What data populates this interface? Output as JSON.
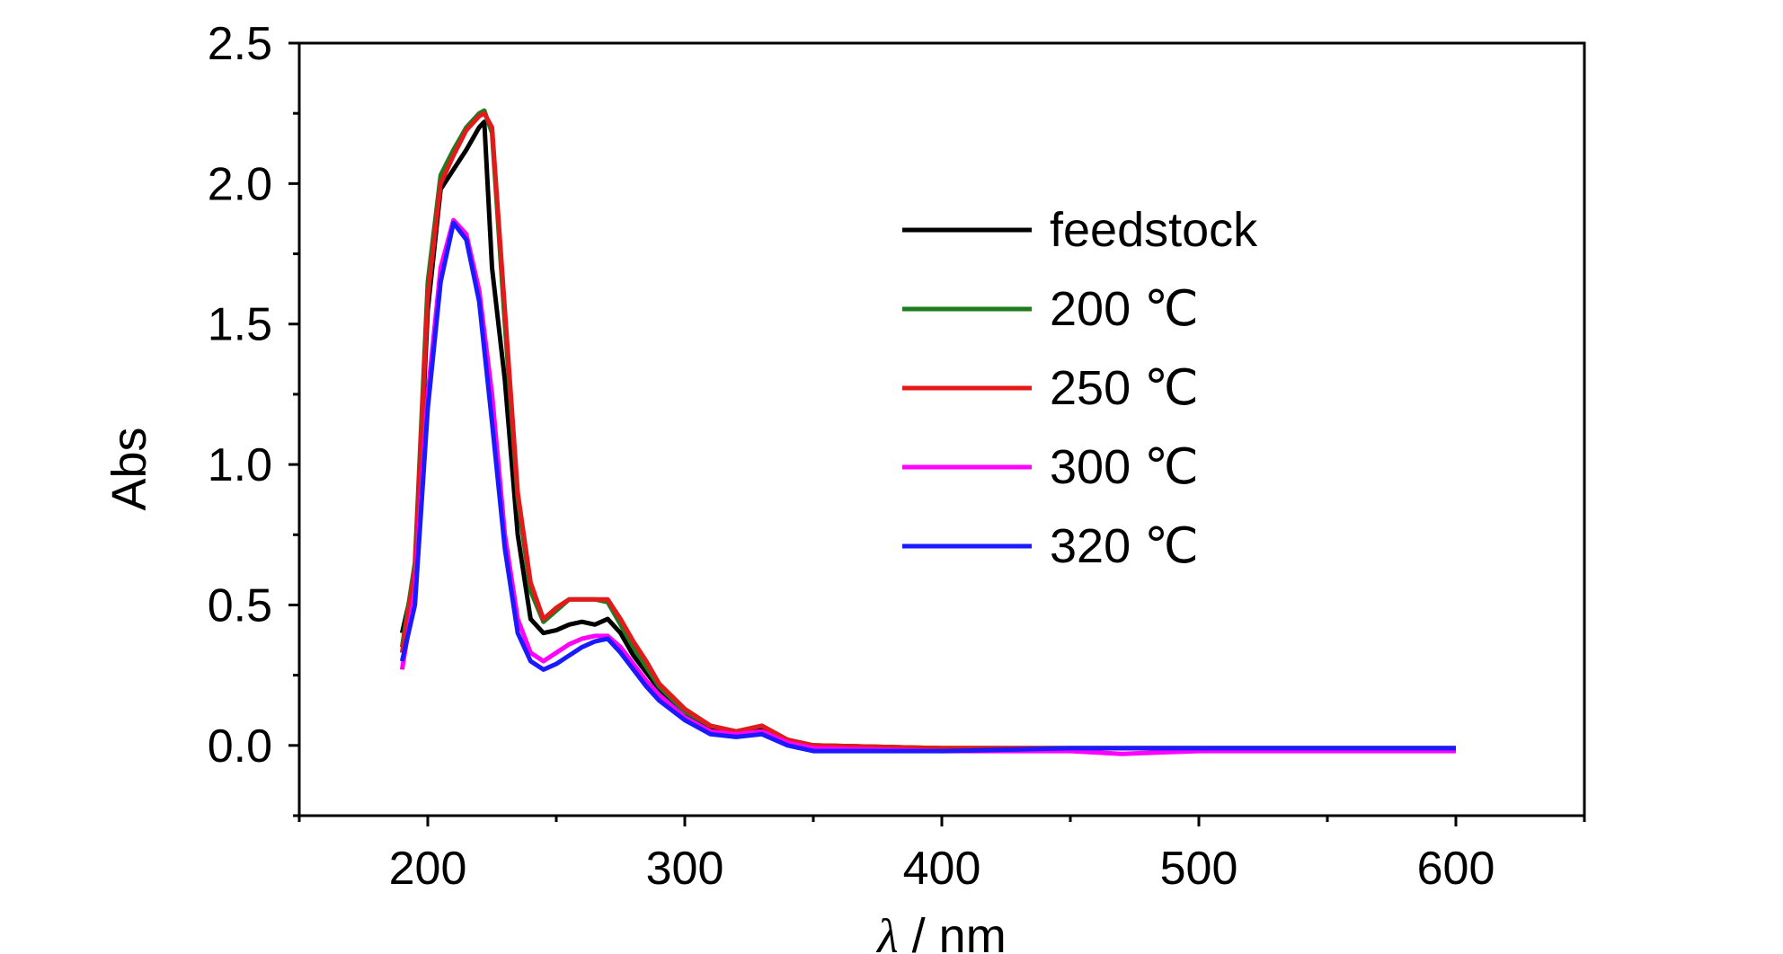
{
  "chart_data": {
    "type": "line",
    "title": "",
    "xlabel_symbol": "λ",
    "xlabel_unit": " / nm",
    "ylabel": "Abs",
    "xlim": [
      150,
      650
    ],
    "ylim": [
      -0.25,
      2.5
    ],
    "xticks": [
      200,
      300,
      400,
      500,
      600
    ],
    "xtick_labels": [
      "200",
      "300",
      "400",
      "500",
      "600"
    ],
    "yticks": [
      0.0,
      0.5,
      1.0,
      1.5,
      2.0,
      2.5
    ],
    "ytick_labels": [
      "0.0",
      "0.5",
      "1.0",
      "1.5",
      "2.0",
      "2.5"
    ],
    "grid": false,
    "legend_position": "upper-right",
    "series": [
      {
        "name": "feedstock",
        "color": "#000000",
        "x": [
          190,
          195,
          200,
          205,
          210,
          215,
          220,
          222,
          225,
          230,
          235,
          240,
          245,
          250,
          255,
          260,
          265,
          270,
          275,
          280,
          285,
          290,
          300,
          310,
          320,
          330,
          340,
          350,
          400,
          450,
          500,
          550,
          600
        ],
        "y": [
          0.4,
          0.6,
          1.55,
          1.98,
          2.05,
          2.12,
          2.2,
          2.22,
          1.7,
          1.3,
          0.75,
          0.45,
          0.4,
          0.41,
          0.43,
          0.44,
          0.43,
          0.45,
          0.4,
          0.32,
          0.26,
          0.2,
          0.11,
          0.06,
          0.05,
          0.06,
          0.02,
          0.0,
          -0.01,
          -0.01,
          -0.01,
          -0.01,
          -0.01
        ]
      },
      {
        "name": "200 ℃",
        "color": "#1e7b1e",
        "x": [
          190,
          195,
          200,
          205,
          210,
          215,
          220,
          222,
          225,
          230,
          235,
          240,
          245,
          250,
          255,
          260,
          265,
          270,
          275,
          280,
          285,
          290,
          300,
          310,
          320,
          330,
          340,
          350,
          400,
          450,
          500,
          550,
          600
        ],
        "y": [
          0.35,
          0.65,
          1.65,
          2.03,
          2.12,
          2.2,
          2.25,
          2.26,
          2.18,
          1.5,
          0.88,
          0.55,
          0.44,
          0.48,
          0.52,
          0.52,
          0.52,
          0.51,
          0.43,
          0.35,
          0.28,
          0.21,
          0.12,
          0.07,
          0.05,
          0.07,
          0.02,
          0.0,
          -0.01,
          -0.01,
          -0.01,
          -0.01,
          -0.01
        ]
      },
      {
        "name": "250 ℃",
        "color": "#e41a1a",
        "x": [
          190,
          195,
          200,
          205,
          210,
          215,
          220,
          222,
          225,
          230,
          235,
          240,
          245,
          250,
          255,
          260,
          265,
          270,
          275,
          280,
          285,
          290,
          300,
          310,
          320,
          330,
          340,
          350,
          400,
          450,
          500,
          550,
          600
        ],
        "y": [
          0.33,
          0.63,
          1.6,
          2.0,
          2.1,
          2.19,
          2.24,
          2.25,
          2.2,
          1.55,
          0.9,
          0.58,
          0.45,
          0.49,
          0.52,
          0.52,
          0.52,
          0.52,
          0.45,
          0.37,
          0.3,
          0.22,
          0.13,
          0.07,
          0.05,
          0.07,
          0.02,
          0.0,
          -0.01,
          -0.01,
          -0.01,
          -0.01,
          -0.01
        ]
      },
      {
        "name": "300 ℃",
        "color": "#ff00ff",
        "x": [
          190,
          195,
          200,
          205,
          210,
          215,
          220,
          225,
          230,
          235,
          240,
          245,
          250,
          255,
          260,
          265,
          270,
          275,
          280,
          285,
          290,
          300,
          310,
          320,
          330,
          340,
          350,
          400,
          450,
          470,
          500,
          550,
          600
        ],
        "y": [
          0.27,
          0.55,
          1.25,
          1.7,
          1.87,
          1.82,
          1.62,
          1.25,
          0.75,
          0.45,
          0.33,
          0.3,
          0.33,
          0.36,
          0.38,
          0.39,
          0.39,
          0.35,
          0.29,
          0.23,
          0.18,
          0.1,
          0.05,
          0.04,
          0.05,
          0.01,
          -0.01,
          -0.02,
          -0.02,
          -0.03,
          -0.02,
          -0.02,
          -0.02
        ]
      },
      {
        "name": "320 ℃",
        "color": "#1a1aff",
        "x": [
          190,
          195,
          200,
          205,
          210,
          215,
          220,
          225,
          230,
          235,
          240,
          245,
          250,
          255,
          260,
          265,
          270,
          275,
          280,
          285,
          290,
          300,
          310,
          320,
          330,
          340,
          350,
          400,
          450,
          500,
          550,
          600
        ],
        "y": [
          0.3,
          0.5,
          1.2,
          1.65,
          1.86,
          1.8,
          1.58,
          1.15,
          0.7,
          0.4,
          0.3,
          0.27,
          0.29,
          0.32,
          0.35,
          0.37,
          0.38,
          0.33,
          0.27,
          0.21,
          0.16,
          0.09,
          0.04,
          0.03,
          0.04,
          0.0,
          -0.02,
          -0.02,
          -0.01,
          -0.01,
          -0.01,
          -0.01
        ]
      }
    ]
  }
}
